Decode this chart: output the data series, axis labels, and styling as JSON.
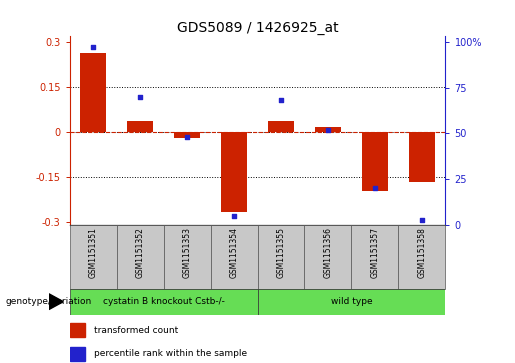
{
  "title": "GDS5089 / 1426925_at",
  "samples": [
    "GSM1151351",
    "GSM1151352",
    "GSM1151353",
    "GSM1151354",
    "GSM1151355",
    "GSM1151356",
    "GSM1151357",
    "GSM1151358"
  ],
  "bar_values": [
    0.265,
    0.038,
    -0.018,
    -0.265,
    0.038,
    0.018,
    -0.195,
    -0.165
  ],
  "dot_values": [
    97,
    70,
    48,
    5,
    68,
    52,
    20,
    3
  ],
  "bar_color": "#cc2200",
  "dot_color": "#2222cc",
  "ylim_left": [
    -0.31,
    0.32
  ],
  "ylim_right": [
    0,
    103
  ],
  "yticks_left": [
    -0.3,
    -0.15,
    0,
    0.15,
    0.3
  ],
  "yticks_right": [
    0,
    25,
    50,
    75,
    100
  ],
  "ytick_labels_left": [
    "-0.3",
    "-0.15",
    "0",
    "0.15",
    "0.3"
  ],
  "ytick_labels_right": [
    "0",
    "25",
    "50",
    "75",
    "100%"
  ],
  "dotted_lines": [
    -0.15,
    0.15
  ],
  "group1_label": "cystatin B knockout Cstb-/-",
  "group2_label": "wild type",
  "group1_indices": [
    0,
    1,
    2,
    3
  ],
  "group2_indices": [
    4,
    5,
    6,
    7
  ],
  "group_color": "#66dd55",
  "genotype_label": "genotype/variation",
  "legend_bar_label": "transformed count",
  "legend_dot_label": "percentile rank within the sample",
  "bar_width": 0.55,
  "xlabel_area_color": "#bbbbbb",
  "title_fontsize": 10,
  "tick_fontsize": 7,
  "label_fontsize": 6.5,
  "left_tick_color": "#cc2200",
  "right_tick_color": "#2222cc"
}
